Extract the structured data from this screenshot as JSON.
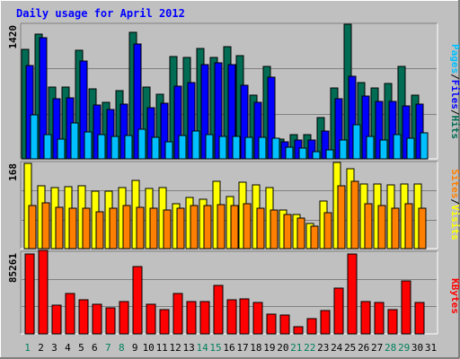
{
  "title": "Daily usage for April 2012",
  "colors": {
    "background": "#c0c0c0",
    "frame_light": "#ffffff",
    "frame_dark": "#808080",
    "title_text": "#0000ff",
    "grid": "#808080",
    "hits": "#006c54",
    "files": "#0000ff",
    "pages": "#00c0ff",
    "visits": "#ffff00",
    "sites": "#ff8000",
    "kbytes": "#ff0000",
    "weekend_day": "#00805c",
    "weekday_day": "#000000",
    "separator": "#ffffff"
  },
  "right_labels": {
    "top": {
      "pages": "Pages",
      "files": "Files",
      "hits": "Hits",
      "sep": "/"
    },
    "middle": {
      "sites": "Sites",
      "visits": "Visits",
      "sep": "/"
    },
    "bottom": {
      "kbytes": "KBytes"
    }
  },
  "chart_data": [
    {
      "type": "bar",
      "panel": "hits-files-pages",
      "ymax_label": "1420",
      "ylim": [
        0,
        1420
      ],
      "grid": true,
      "categories": [
        "1",
        "2",
        "3",
        "4",
        "5",
        "6",
        "7",
        "8",
        "9",
        "10",
        "11",
        "12",
        "13",
        "14",
        "15",
        "16",
        "17",
        "18",
        "19",
        "20",
        "21",
        "22",
        "23",
        "24",
        "25",
        "26",
        "27",
        "28",
        "29",
        "30",
        "31"
      ],
      "series": [
        {
          "name": "Hits",
          "values": [
            1160,
            1320,
            760,
            760,
            1150,
            740,
            600,
            720,
            1340,
            760,
            690,
            1090,
            1080,
            1170,
            1080,
            1190,
            1100,
            680,
            980,
            210,
            260,
            260,
            440,
            750,
            1430,
            810,
            750,
            800,
            980,
            680,
            null
          ]
        },
        {
          "name": "Files",
          "values": [
            990,
            1290,
            640,
            650,
            1040,
            570,
            520,
            580,
            1220,
            540,
            590,
            770,
            810,
            1000,
            1020,
            1000,
            780,
            600,
            870,
            180,
            200,
            200,
            300,
            640,
            880,
            670,
            610,
            610,
            560,
            580,
            null
          ]
        },
        {
          "name": "Pages",
          "values": [
            470,
            260,
            210,
            380,
            290,
            260,
            240,
            250,
            310,
            230,
            180,
            250,
            300,
            260,
            240,
            240,
            230,
            230,
            220,
            120,
            110,
            80,
            100,
            200,
            360,
            240,
            200,
            260,
            220,
            280,
            null
          ]
        }
      ]
    },
    {
      "type": "bar",
      "panel": "visits-sites",
      "ymax_label": "168",
      "ylim": [
        0,
        168
      ],
      "grid": true,
      "categories": [
        "1",
        "2",
        "3",
        "4",
        "5",
        "6",
        "7",
        "8",
        "9",
        "10",
        "11",
        "12",
        "13",
        "14",
        "15",
        "16",
        "17",
        "18",
        "19",
        "20",
        "21",
        "22",
        "23",
        "24",
        "25",
        "26",
        "27",
        "28",
        "29",
        "30",
        "31"
      ],
      "series": [
        {
          "name": "Visits",
          "values": [
            168,
            124,
            120,
            122,
            124,
            114,
            114,
            120,
            134,
            118,
            120,
            88,
            100,
            98,
            132,
            102,
            130,
            126,
            120,
            76,
            68,
            50,
            94,
            170,
            158,
            128,
            128,
            126,
            128,
            128,
            null
          ]
        },
        {
          "name": "Sites",
          "values": [
            84,
            91,
            82,
            80,
            80,
            72,
            80,
            84,
            82,
            80,
            76,
            80,
            84,
            84,
            86,
            84,
            88,
            80,
            76,
            68,
            60,
            44,
            70,
            124,
            132,
            88,
            84,
            80,
            88,
            80,
            null
          ]
        }
      ]
    },
    {
      "type": "bar",
      "panel": "kbytes",
      "ymax_label": "85261",
      "ylim": [
        0,
        85261
      ],
      "grid": true,
      "categories": [
        "1",
        "2",
        "3",
        "4",
        "5",
        "6",
        "7",
        "8",
        "9",
        "10",
        "11",
        "12",
        "13",
        "14",
        "15",
        "16",
        "17",
        "18",
        "19",
        "20",
        "21",
        "22",
        "23",
        "24",
        "25",
        "26",
        "27",
        "28",
        "29",
        "30",
        "31"
      ],
      "series": [
        {
          "name": "KBytes",
          "values": [
            84500,
            88000,
            30000,
            43000,
            36000,
            31000,
            27000,
            34000,
            71000,
            31000,
            26000,
            43000,
            34500,
            34000,
            51000,
            36000,
            36500,
            33000,
            20500,
            20000,
            8000,
            16000,
            24500,
            48500,
            84500,
            34500,
            33500,
            26000,
            56000,
            33000,
            null
          ]
        }
      ]
    }
  ],
  "weekend_days": [
    "1",
    "7",
    "8",
    "14",
    "15",
    "21",
    "22",
    "28",
    "29"
  ]
}
